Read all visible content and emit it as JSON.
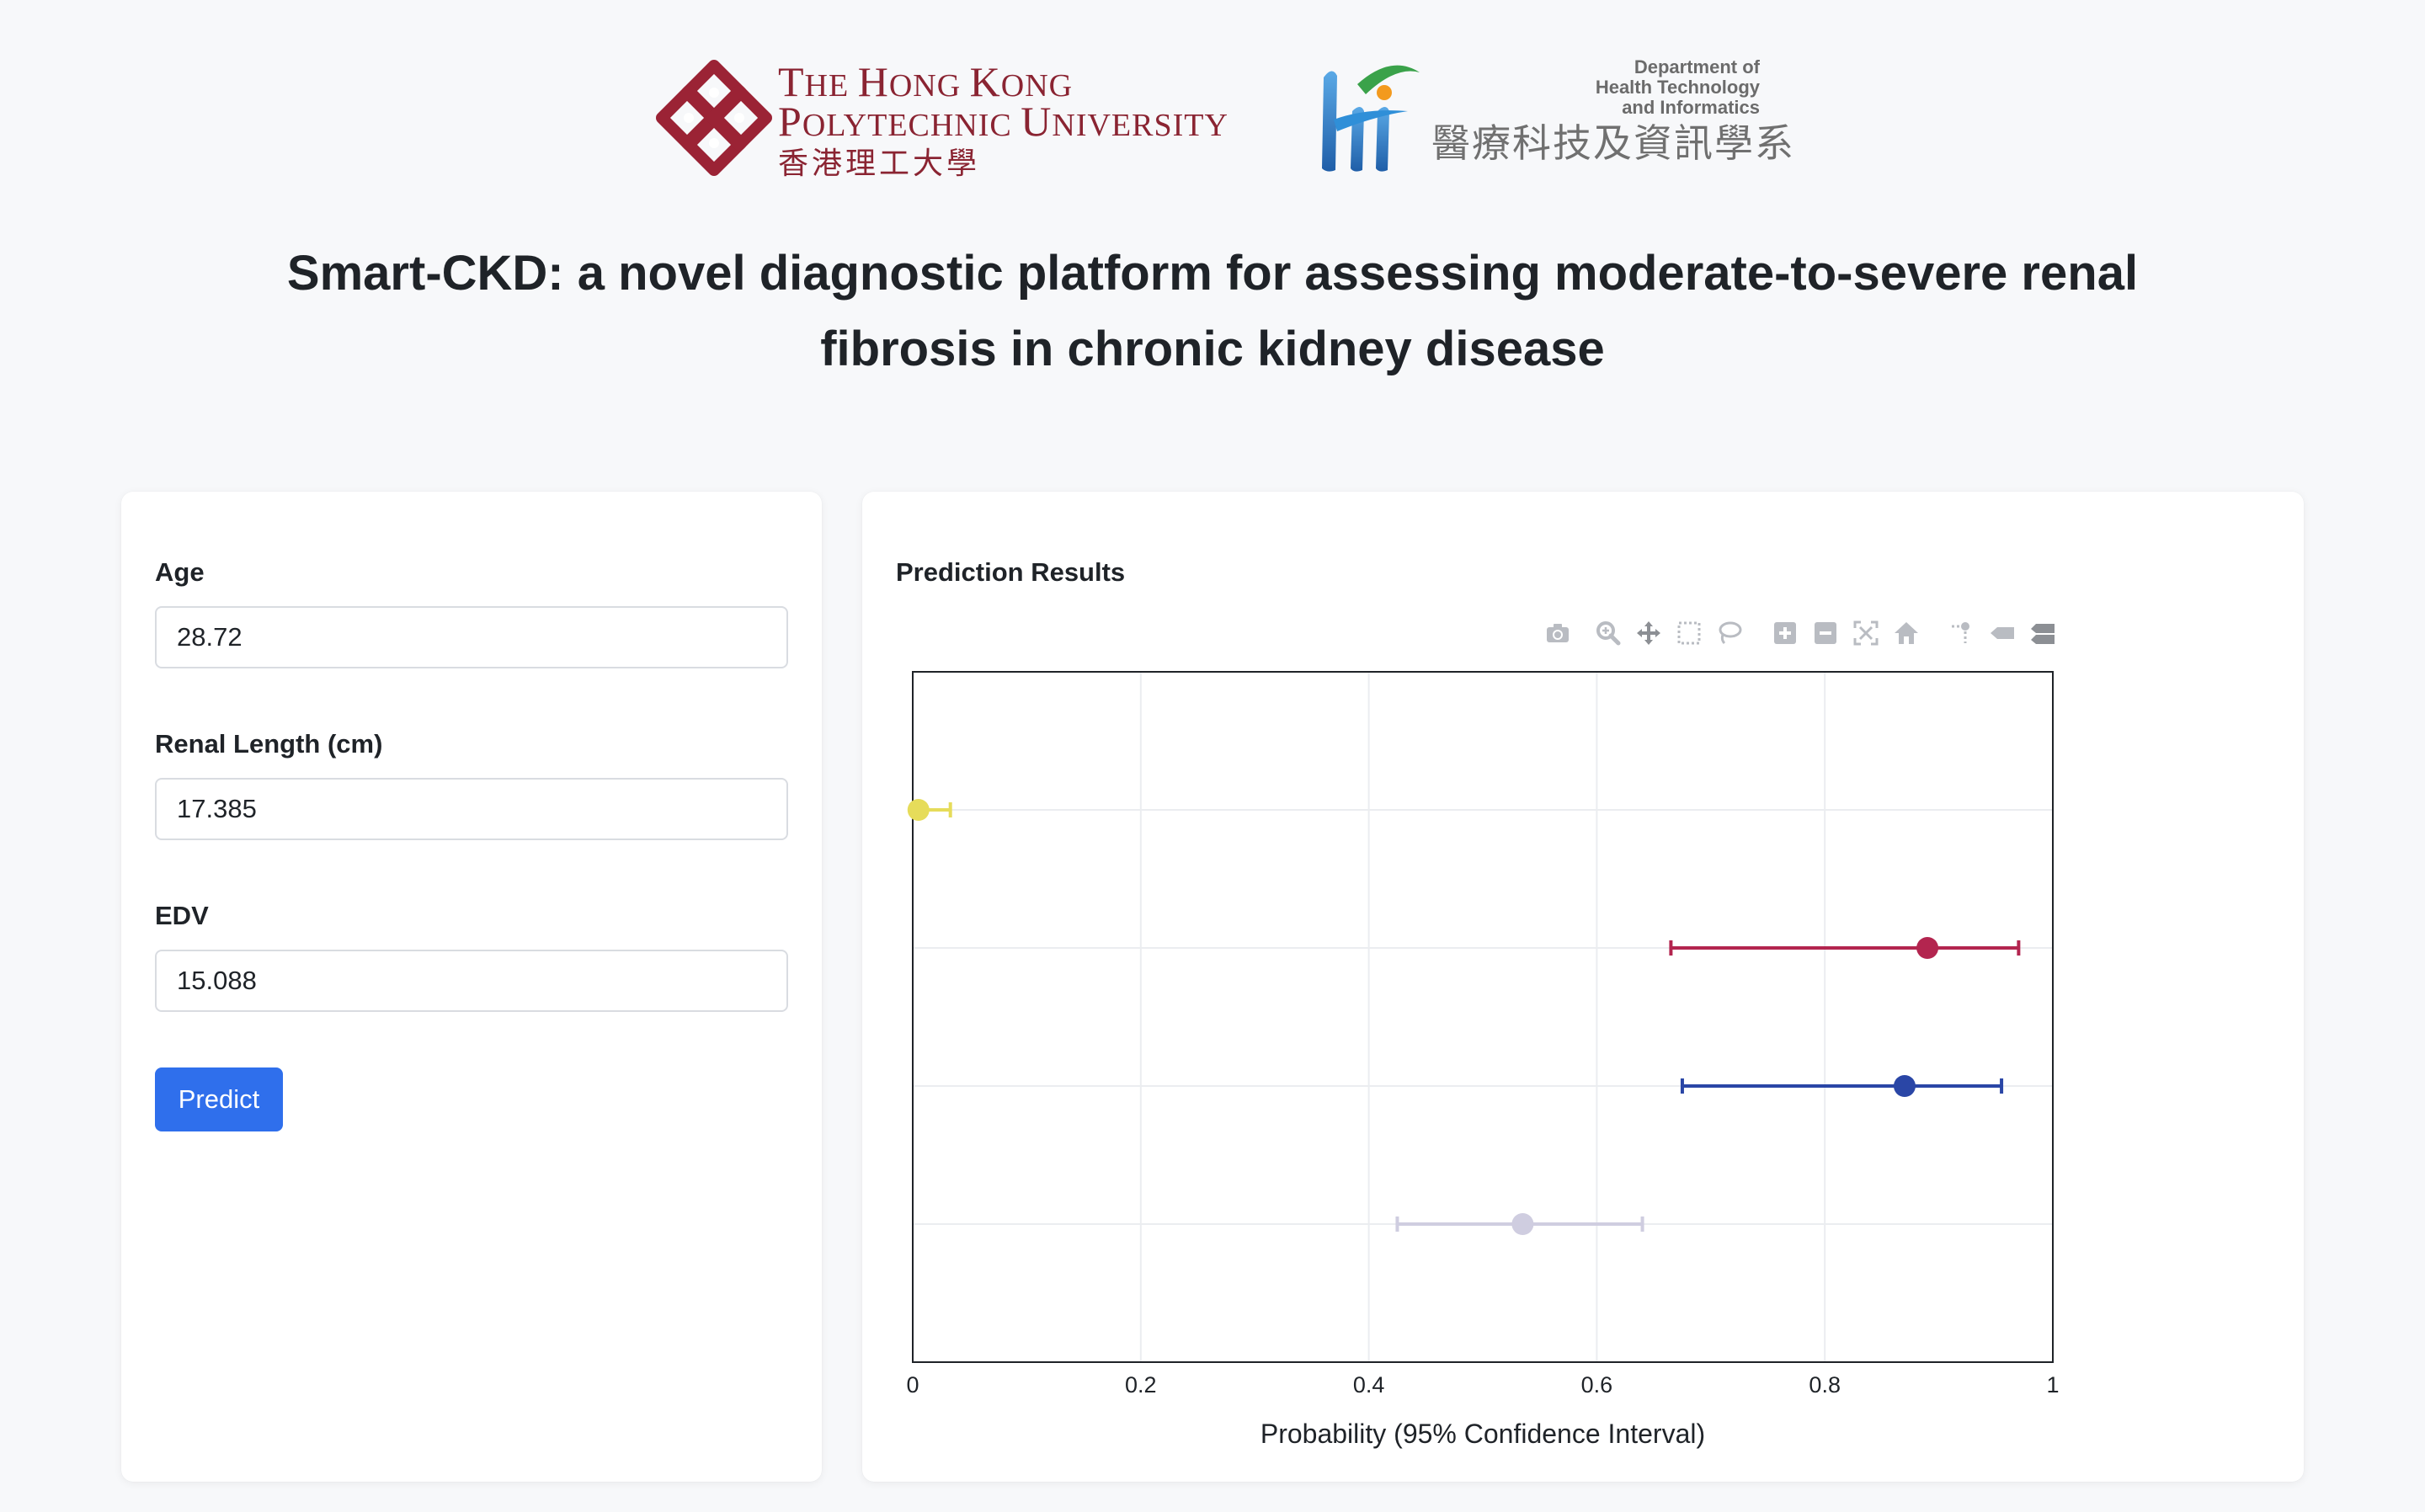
{
  "header": {
    "university": {
      "line1_cap": "T",
      "line1_rest": "HE ",
      "line1_cap2": "H",
      "line1_rest2": "ONG ",
      "line1_cap3": "K",
      "line1_rest3": "ONG",
      "line2_cap": "P",
      "line2_rest": "OLYTECHNIC ",
      "line2_cap2": "U",
      "line2_rest2": "NIVERSITY",
      "chinese": "香港理工大學"
    },
    "department": {
      "line1": "Department of",
      "line2": "Health Technology",
      "line3": "and Informatics",
      "chinese": "醫療科技及資訊學系"
    },
    "brand_color": "#8a2432"
  },
  "page_title": "Smart-CKD: a novel diagnostic platform for assessing moderate-to-severe renal fibrosis in chronic kidney disease",
  "form": {
    "age_label": "Age",
    "age_value": "28.72",
    "renal_length_label": "Renal Length (cm)",
    "renal_length_value": "17.385",
    "edv_label": "EDV",
    "edv_value": "15.088",
    "predict_label": "Predict",
    "accent": "#2f6fec"
  },
  "results": {
    "title": "Prediction Results",
    "modebar_icons": [
      "camera-icon",
      "zoom-icon",
      "pan-icon",
      "box-select-icon",
      "lasso-select-icon",
      "zoom-in-icon",
      "zoom-out-icon",
      "autoscale-icon",
      "reset-axes-icon",
      "spike-lines-icon",
      "hover-closest-icon",
      "hover-compare-icon"
    ]
  },
  "chart_data": {
    "type": "scatter",
    "xlabel": "Probability (95% Confidence Interval)",
    "xlim": [
      0,
      1
    ],
    "xticks": [
      0,
      0.2,
      0.4,
      0.6,
      0.8,
      1
    ],
    "xtick_labels": [
      "0",
      "0.2",
      "0.4",
      "0.6",
      "0.8",
      "1"
    ],
    "grid": true,
    "error_bars": "horizontal",
    "points": [
      {
        "x": 0.005,
        "low": 0.0,
        "high": 0.033,
        "color": "#e6dc5a"
      },
      {
        "x": 0.89,
        "low": 0.665,
        "high": 0.97,
        "color": "#b3254f"
      },
      {
        "x": 0.87,
        "low": 0.675,
        "high": 0.955,
        "color": "#2a46a6"
      },
      {
        "x": 0.535,
        "low": 0.425,
        "high": 0.64,
        "color": "#cfcde0"
      }
    ]
  }
}
